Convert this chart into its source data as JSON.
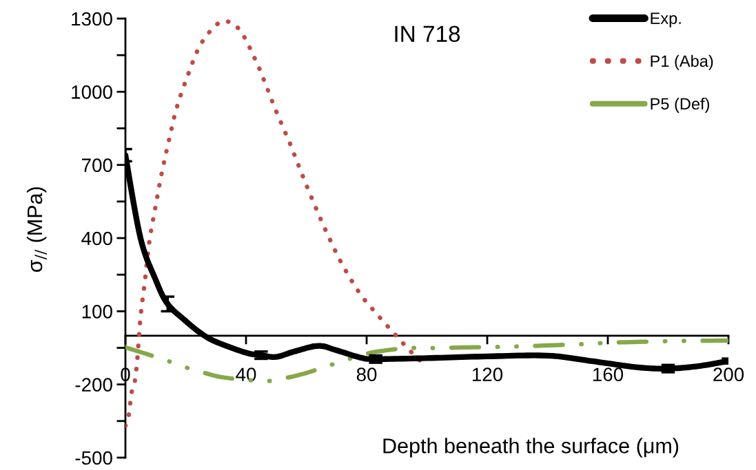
{
  "chart_data": {
    "type": "line",
    "title": "IN 718",
    "xlabel": "Depth beneath the surface (μm)",
    "ylabel": "σ$_{//}$ (MPa)",
    "xlim": [
      0,
      200
    ],
    "xticks": [
      0,
      40,
      80,
      120,
      160,
      200
    ],
    "ylim": [
      -500,
      1300
    ],
    "yticks": [
      -500,
      {
        "value": -350,
        "label": null
      },
      -200,
      {
        "value": -50,
        "label": null
      },
      100,
      {
        "value": 250,
        "label": null
      },
      400,
      {
        "value": 550,
        "label": null
      },
      700,
      {
        "value": 850,
        "label": null
      },
      1000,
      {
        "value": 1150,
        "label": null
      },
      1300
    ],
    "grid": false,
    "legend": "right",
    "marker": "none",
    "series": [
      {
        "name": "Exp.",
        "color": "#000000",
        "line_style": "solid",
        "x": [
          0,
          5,
          10,
          14,
          20,
          25,
          30,
          40,
          45,
          50,
          56,
          64,
          70,
          78,
          83,
          100,
          120,
          140,
          155,
          170,
          180,
          190,
          200
        ],
        "values": [
          740,
          400,
          230,
          130,
          60,
          10,
          -25,
          -70,
          -80,
          -87,
          -65,
          -42,
          -60,
          -90,
          -96,
          -92,
          -85,
          -82,
          -105,
          -130,
          -135,
          -125,
          -104
        ],
        "errors": [
          25,
          null,
          null,
          30,
          null,
          null,
          null,
          null,
          15,
          null,
          null,
          5,
          null,
          null,
          15,
          null,
          null,
          5,
          null,
          null,
          15,
          null,
          10
        ]
      },
      {
        "name": "P1 (Aba)",
        "color": "#be4b48",
        "line_style": "dotted",
        "x": [
          0,
          1.1,
          2,
          3,
          3.9,
          5,
          6.4,
          8,
          10,
          12,
          14.4,
          17,
          20.5,
          24.5,
          29,
          33,
          38,
          43,
          46,
          50,
          54.4,
          58.5,
          62.7,
          67,
          72,
          77.7,
          82.5,
          90,
          95,
          97.6
        ],
        "values": [
          -370,
          -327,
          -236,
          -197,
          -101,
          76,
          217,
          391,
          530,
          664,
          799,
          934,
          1061,
          1184,
          1260,
          1290,
          1252,
          1134,
          1046,
          920,
          793,
          664,
          537,
          416,
          290,
          174,
          101,
          -3,
          -70,
          -101
        ]
      },
      {
        "name": "P5 (Def)",
        "color": "#86a84a",
        "line_style": "dashed",
        "x": [
          0,
          12.3,
          19,
          26,
          33,
          46,
          53,
          60,
          66.7,
          79,
          86,
          94,
          101,
          114,
          128,
          149,
          163,
          183.5,
          200
        ],
        "values": [
          -48,
          -96,
          -126,
          -152,
          -172,
          -186,
          -174,
          -153,
          -126,
          -77,
          -61,
          -51,
          -51,
          -48,
          -45,
          -36,
          -28,
          -22,
          -20
        ]
      }
    ]
  }
}
